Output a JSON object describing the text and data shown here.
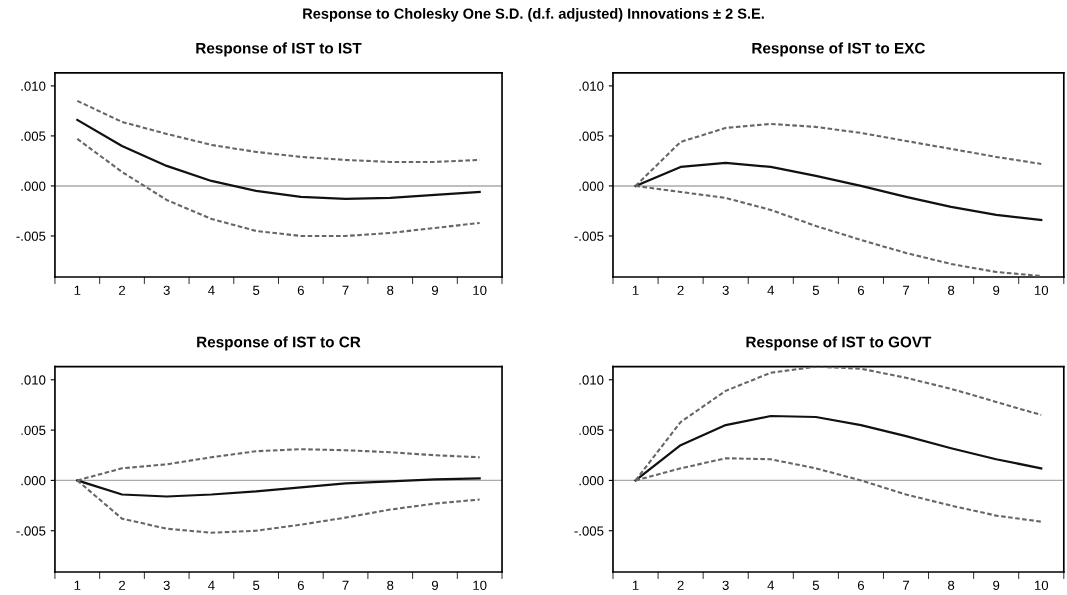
{
  "chart_data": [
    {
      "type": "line",
      "title": "Response of IST to IST",
      "annotations": [
        "Response to Cholesky One S.D. (d.f. adjusted) Innovations ± 2 S.E."
      ],
      "categories": [
        "1",
        "2",
        "3",
        "4",
        "5",
        "6",
        "7",
        "8",
        "9",
        "10"
      ],
      "ylim": [
        -0.0091,
        0.0113
      ],
      "yticks": [
        {
          "value": 0.01,
          "label": ".010"
        },
        {
          "value": 0.005,
          "label": ".005"
        },
        {
          "value": 0,
          "label": ".000"
        },
        {
          "value": -0.005,
          "label": "-.005"
        }
      ],
      "grid": false,
      "ref_lines": [
        {
          "axis": "y",
          "value": 0,
          "color": "#aaaaaa"
        }
      ],
      "series": [
        {
          "color": "#111111",
          "line_style": "solid",
          "values": [
            0.0066,
            0.004,
            0.002,
            0.0005,
            -0.0005,
            -0.0011,
            -0.0013,
            -0.0012,
            -0.0009,
            -0.0006
          ]
        },
        {
          "color": "#666666",
          "line_style": "dashed",
          "values": [
            0.0085,
            0.0064,
            0.0052,
            0.0041,
            0.0034,
            0.0029,
            0.0026,
            0.0024,
            0.0024,
            0.0026
          ]
        },
        {
          "color": "#666666",
          "line_style": "dashed",
          "values": [
            0.0047,
            0.0014,
            -0.0014,
            -0.0033,
            -0.0045,
            -0.005,
            -0.005,
            -0.0047,
            -0.0042,
            -0.0037
          ]
        }
      ]
    },
    {
      "type": "line",
      "title": "Response of IST to EXC",
      "categories": [
        "1",
        "2",
        "3",
        "4",
        "5",
        "6",
        "7",
        "8",
        "9",
        "10"
      ],
      "ylim": [
        -0.0091,
        0.0113
      ],
      "yticks": [
        {
          "value": 0.01,
          "label": ".010"
        },
        {
          "value": 0.005,
          "label": ".005"
        },
        {
          "value": 0,
          "label": ".000"
        },
        {
          "value": -0.005,
          "label": "-.005"
        }
      ],
      "grid": false,
      "ref_lines": [
        {
          "axis": "y",
          "value": 0,
          "color": "#aaaaaa"
        }
      ],
      "series": [
        {
          "color": "#111111",
          "line_style": "solid",
          "values": [
            0,
            0.0019,
            0.0023,
            0.0019,
            0.001,
            0.0,
            -0.0011,
            -0.0021,
            -0.0029,
            -0.0034
          ]
        },
        {
          "color": "#666666",
          "line_style": "dashed",
          "values": [
            0,
            0.0044,
            0.0058,
            0.0062,
            0.0059,
            0.0053,
            0.0045,
            0.0037,
            0.0029,
            0.0022
          ]
        },
        {
          "color": "#666666",
          "line_style": "dashed",
          "values": [
            0,
            -0.0006,
            -0.0012,
            -0.0024,
            -0.004,
            -0.0054,
            -0.0067,
            -0.0078,
            -0.0086,
            -0.009
          ]
        }
      ]
    },
    {
      "type": "line",
      "title": "Response of IST to CR",
      "categories": [
        "1",
        "2",
        "3",
        "4",
        "5",
        "6",
        "7",
        "8",
        "9",
        "10"
      ],
      "ylim": [
        -0.0091,
        0.0113
      ],
      "yticks": [
        {
          "value": 0.01,
          "label": ".010"
        },
        {
          "value": 0.005,
          "label": ".005"
        },
        {
          "value": 0,
          "label": ".000"
        },
        {
          "value": -0.005,
          "label": "-.005"
        }
      ],
      "grid": false,
      "ref_lines": [
        {
          "axis": "y",
          "value": 0,
          "color": "#aaaaaa"
        }
      ],
      "series": [
        {
          "color": "#111111",
          "line_style": "solid",
          "values": [
            0,
            -0.0014,
            -0.0016,
            -0.0014,
            -0.0011,
            -0.0007,
            -0.0003,
            -0.0001,
            0.0001,
            0.0002
          ]
        },
        {
          "color": "#666666",
          "line_style": "dashed",
          "values": [
            0,
            0.0012,
            0.0016,
            0.0023,
            0.0029,
            0.0031,
            0.003,
            0.0028,
            0.0025,
            0.0023
          ]
        },
        {
          "color": "#666666",
          "line_style": "dashed",
          "values": [
            0,
            -0.0038,
            -0.0048,
            -0.0052,
            -0.005,
            -0.0044,
            -0.0037,
            -0.0029,
            -0.0023,
            -0.0019
          ]
        }
      ]
    },
    {
      "type": "line",
      "title": "Response of IST to GOVT",
      "categories": [
        "1",
        "2",
        "3",
        "4",
        "5",
        "6",
        "7",
        "8",
        "9",
        "10"
      ],
      "ylim": [
        -0.0091,
        0.0113
      ],
      "yticks": [
        {
          "value": 0.01,
          "label": ".010"
        },
        {
          "value": 0.005,
          "label": ".005"
        },
        {
          "value": 0,
          "label": ".000"
        },
        {
          "value": -0.005,
          "label": "-.005"
        }
      ],
      "grid": false,
      "ref_lines": [
        {
          "axis": "y",
          "value": 0,
          "color": "#aaaaaa"
        }
      ],
      "series": [
        {
          "color": "#111111",
          "line_style": "solid",
          "values": [
            0,
            0.0035,
            0.0055,
            0.0064,
            0.0063,
            0.0055,
            0.0044,
            0.0032,
            0.0021,
            0.0012
          ]
        },
        {
          "color": "#666666",
          "line_style": "dashed",
          "values": [
            0,
            0.0058,
            0.0089,
            0.0107,
            0.0113,
            0.0111,
            0.0102,
            0.0091,
            0.0078,
            0.0065
          ]
        },
        {
          "color": "#666666",
          "line_style": "dashed",
          "values": [
            0,
            0.0012,
            0.0022,
            0.0021,
            0.0012,
            0.0,
            -0.0014,
            -0.0025,
            -0.0035,
            -0.0041
          ]
        }
      ]
    }
  ]
}
